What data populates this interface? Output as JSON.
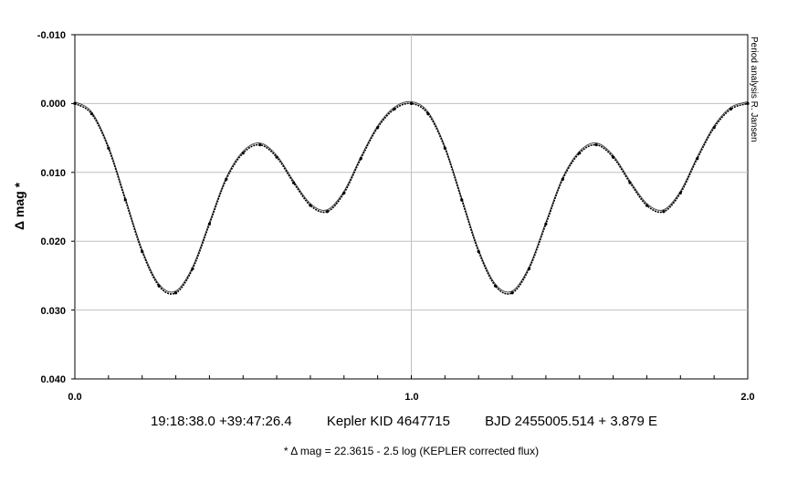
{
  "chart_data": {
    "type": "scatter",
    "title": "",
    "xlabel": "",
    "ylabel": "Δ mag *",
    "xlim": [
      0.0,
      2.0
    ],
    "ylim": [
      -0.01,
      0.04
    ],
    "y_inverted": true,
    "grid": true,
    "x_tick_labels": [
      "0.0",
      "1.0",
      "2.0"
    ],
    "y_tick_labels": [
      "-0.010",
      "0.000",
      "0.010",
      "0.020",
      "0.030",
      "0.040"
    ],
    "credit": "Period analysis R. Jansen",
    "series": [
      {
        "x": [
          0.0,
          0.05,
          0.1,
          0.15,
          0.2,
          0.25,
          0.3,
          0.35,
          0.4,
          0.45,
          0.5,
          0.55,
          0.6,
          0.65,
          0.7,
          0.75,
          0.8,
          0.85,
          0.9,
          0.95,
          1.0,
          1.05,
          1.1,
          1.15,
          1.2,
          1.25,
          1.3,
          1.35,
          1.4,
          1.45,
          1.5,
          1.55,
          1.6,
          1.65,
          1.7,
          1.75,
          1.8,
          1.85,
          1.9,
          1.95,
          2.0
        ],
        "y": [
          0.0,
          0.0015,
          0.0065,
          0.014,
          0.0215,
          0.0265,
          0.0275,
          0.024,
          0.0175,
          0.011,
          0.0072,
          0.006,
          0.0078,
          0.0115,
          0.0148,
          0.0157,
          0.013,
          0.008,
          0.0035,
          0.0008,
          0.0,
          0.0015,
          0.0065,
          0.014,
          0.0215,
          0.0265,
          0.0275,
          0.024,
          0.0175,
          0.011,
          0.0072,
          0.006,
          0.0078,
          0.0115,
          0.0148,
          0.0157,
          0.013,
          0.008,
          0.0035,
          0.0008,
          0.0
        ]
      }
    ],
    "caption": {
      "coords": "19:18:38.0 +39:47:26.4",
      "star": "Kepler KID 4647715",
      "ephemeris": "BJD 2455005.514 + 3.879 E"
    },
    "footnote": "* Δ mag = 22.3615 - 2.5 log (KEPLER corrected flux)"
  }
}
